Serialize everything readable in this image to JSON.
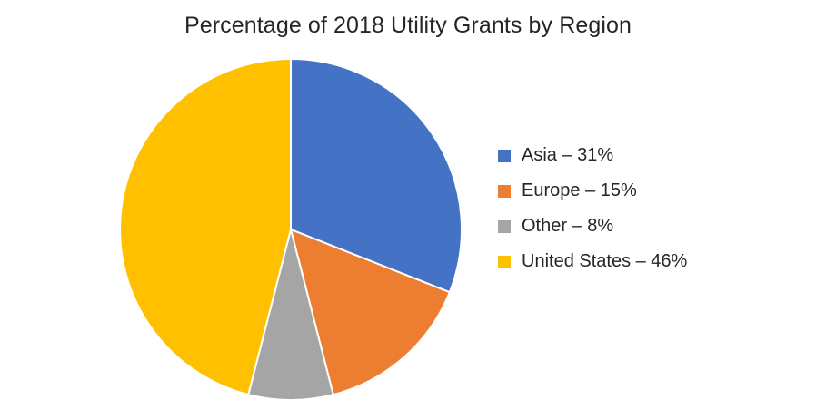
{
  "chart_data": {
    "type": "pie",
    "title": "Percentage of 2018 Utility Grants by Region",
    "slices": [
      {
        "name": "Asia",
        "value": 31,
        "color": "#4472C4",
        "legend_label": "Asia – 31%"
      },
      {
        "name": "Europe",
        "value": 15,
        "color": "#ED7D31",
        "legend_label": "Europe – 15%"
      },
      {
        "name": "Other",
        "value": 8,
        "color": "#A5A5A5",
        "legend_label": "Other – 8%"
      },
      {
        "name": "United States",
        "value": 46,
        "color": "#FFC000",
        "legend_label": "United States – 46%"
      }
    ],
    "start_angle": "12 o'clock",
    "direction": "clockwise",
    "legend_position": "right"
  }
}
